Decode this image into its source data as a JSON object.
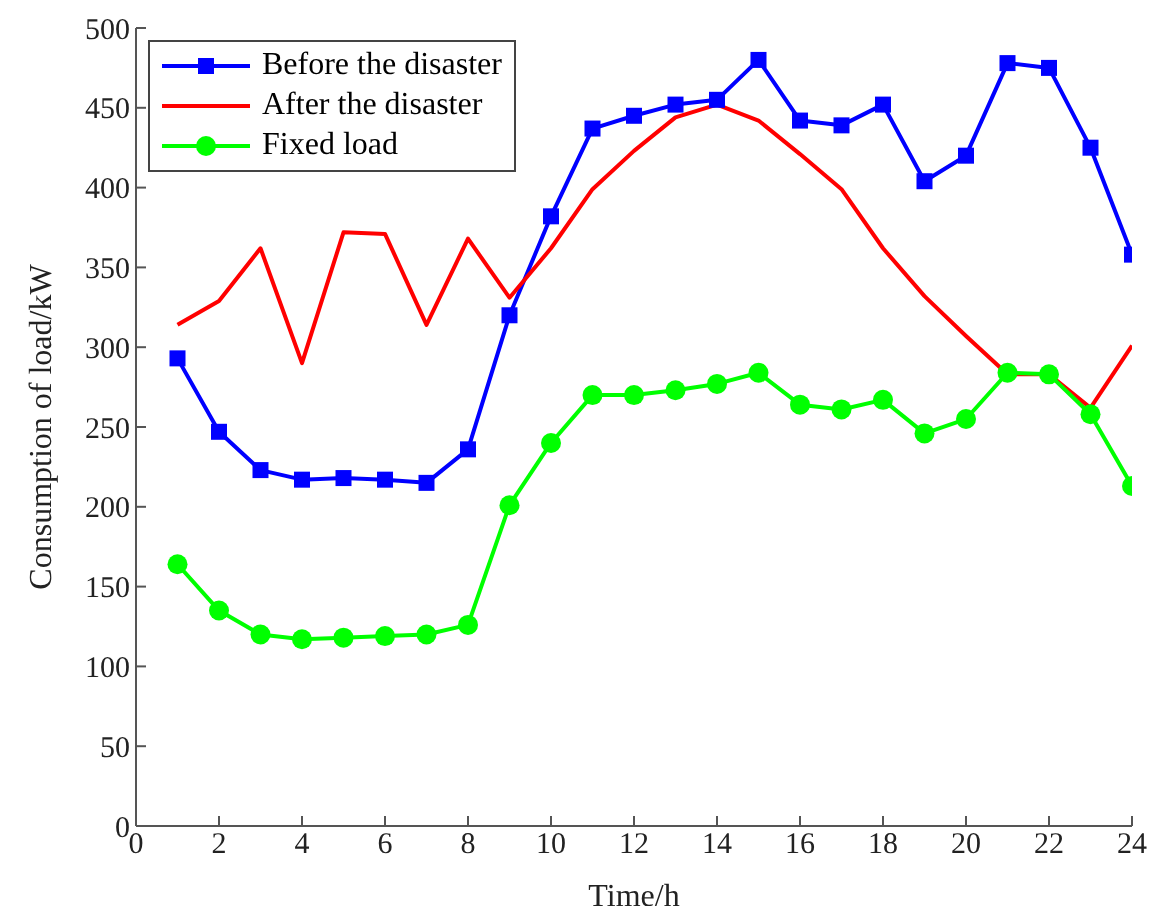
{
  "chart_data": {
    "type": "line",
    "xlabel": "Time/h",
    "ylabel": "Consumption of load/kW",
    "x": [
      1,
      2,
      3,
      4,
      5,
      6,
      7,
      8,
      9,
      10,
      11,
      12,
      13,
      14,
      15,
      16,
      17,
      18,
      19,
      20,
      21,
      22,
      23,
      24
    ],
    "series": [
      {
        "name": "Before the disaster",
        "color": "#0000ff",
        "marker": "square",
        "values": [
          293,
          247,
          223,
          217,
          218,
          217,
          215,
          236,
          320,
          382,
          437,
          445,
          452,
          455,
          480,
          442,
          439,
          452,
          404,
          420,
          478,
          475,
          425,
          358
        ]
      },
      {
        "name": "After the disaster",
        "color": "#ff0000",
        "marker": "none",
        "values": [
          314,
          329,
          362,
          290,
          372,
          371,
          314,
          368,
          331,
          362,
          399,
          423,
          444,
          452,
          442,
          421,
          399,
          362,
          332,
          307,
          283,
          283,
          262,
          301
        ]
      },
      {
        "name": "Fixed load",
        "color": "#00ff00",
        "marker": "circle",
        "values": [
          164,
          135,
          120,
          117,
          118,
          119,
          120,
          126,
          201,
          240,
          270,
          270,
          273,
          277,
          284,
          264,
          261,
          267,
          246,
          255,
          284,
          283,
          258,
          213
        ]
      }
    ],
    "xlim": [
      0,
      24
    ],
    "xticks": [
      0,
      2,
      4,
      6,
      8,
      10,
      12,
      14,
      16,
      18,
      20,
      22,
      24
    ],
    "ylim": [
      0,
      500
    ],
    "yticks": [
      0,
      50,
      100,
      150,
      200,
      250,
      300,
      350,
      400,
      450,
      500
    ],
    "grid": false,
    "legend": "top left",
    "line_style": "solid"
  }
}
